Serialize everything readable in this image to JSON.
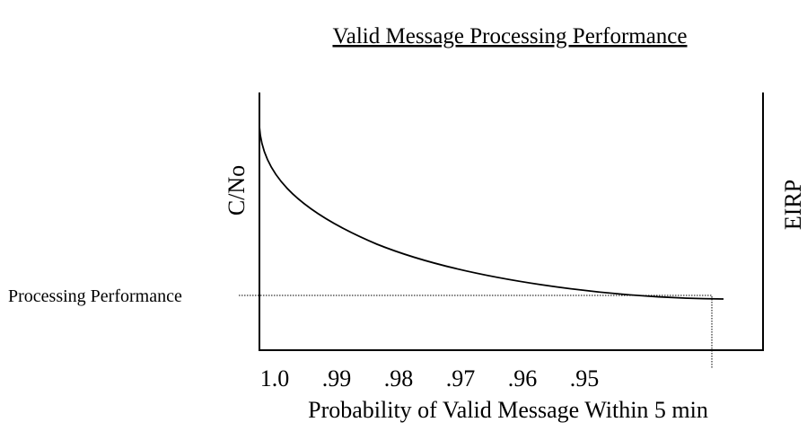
{
  "title": "Valid Message Processing Performance",
  "left_axis_label": "C/No",
  "right_axis_label": "EIRP",
  "x_axis_label": "Probability of Valid Message Within 5 min",
  "x_tick_labels": [
    "1.0",
    ".99",
    ".98",
    ".97",
    ".96",
    ".95"
  ],
  "annotation": "Processing Performance"
}
